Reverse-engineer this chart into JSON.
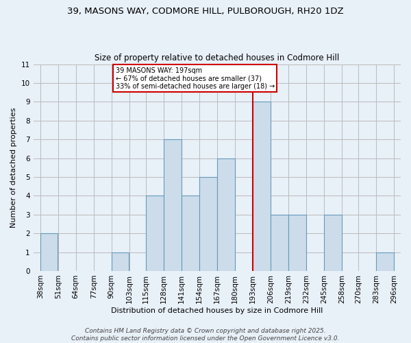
{
  "title1": "39, MASONS WAY, CODMORE HILL, PULBOROUGH, RH20 1DZ",
  "title2": "Size of property relative to detached houses in Codmore Hill",
  "xlabel": "Distribution of detached houses by size in Codmore Hill",
  "ylabel": "Number of detached properties",
  "bin_edges": [
    38,
    51,
    64,
    77,
    90,
    103,
    115,
    128,
    141,
    154,
    167,
    180,
    193,
    206,
    219,
    232,
    245,
    258,
    270,
    283,
    296
  ],
  "counts": [
    2,
    0,
    0,
    0,
    1,
    0,
    4,
    7,
    4,
    5,
    6,
    0,
    9,
    3,
    3,
    0,
    3,
    0,
    0,
    1
  ],
  "bar_color": "#ccdcea",
  "bar_edge_color": "#6699bb",
  "grid_color": "#bbbbbb",
  "background_color": "#e8f0f8",
  "red_line_x": 193,
  "annotation_title": "39 MASONS WAY: 197sqm",
  "annotation_line1": "← 67% of detached houses are smaller (37)",
  "annotation_line2": "33% of semi-detached houses are larger (18) →",
  "annotation_box_color": "#ffffff",
  "annotation_border_color": "#cc0000",
  "ylim": [
    0,
    11
  ],
  "yticks": [
    0,
    1,
    2,
    3,
    4,
    5,
    6,
    7,
    8,
    9,
    10,
    11
  ],
  "footer_line1": "Contains HM Land Registry data © Crown copyright and database right 2025.",
  "footer_line2": "Contains public sector information licensed under the Open Government Licence v3.0.",
  "title_fontsize": 9.5,
  "subtitle_fontsize": 8.5,
  "tick_fontsize": 7.5,
  "ylabel_fontsize": 8,
  "xlabel_fontsize": 8,
  "footer_fontsize": 6.5
}
